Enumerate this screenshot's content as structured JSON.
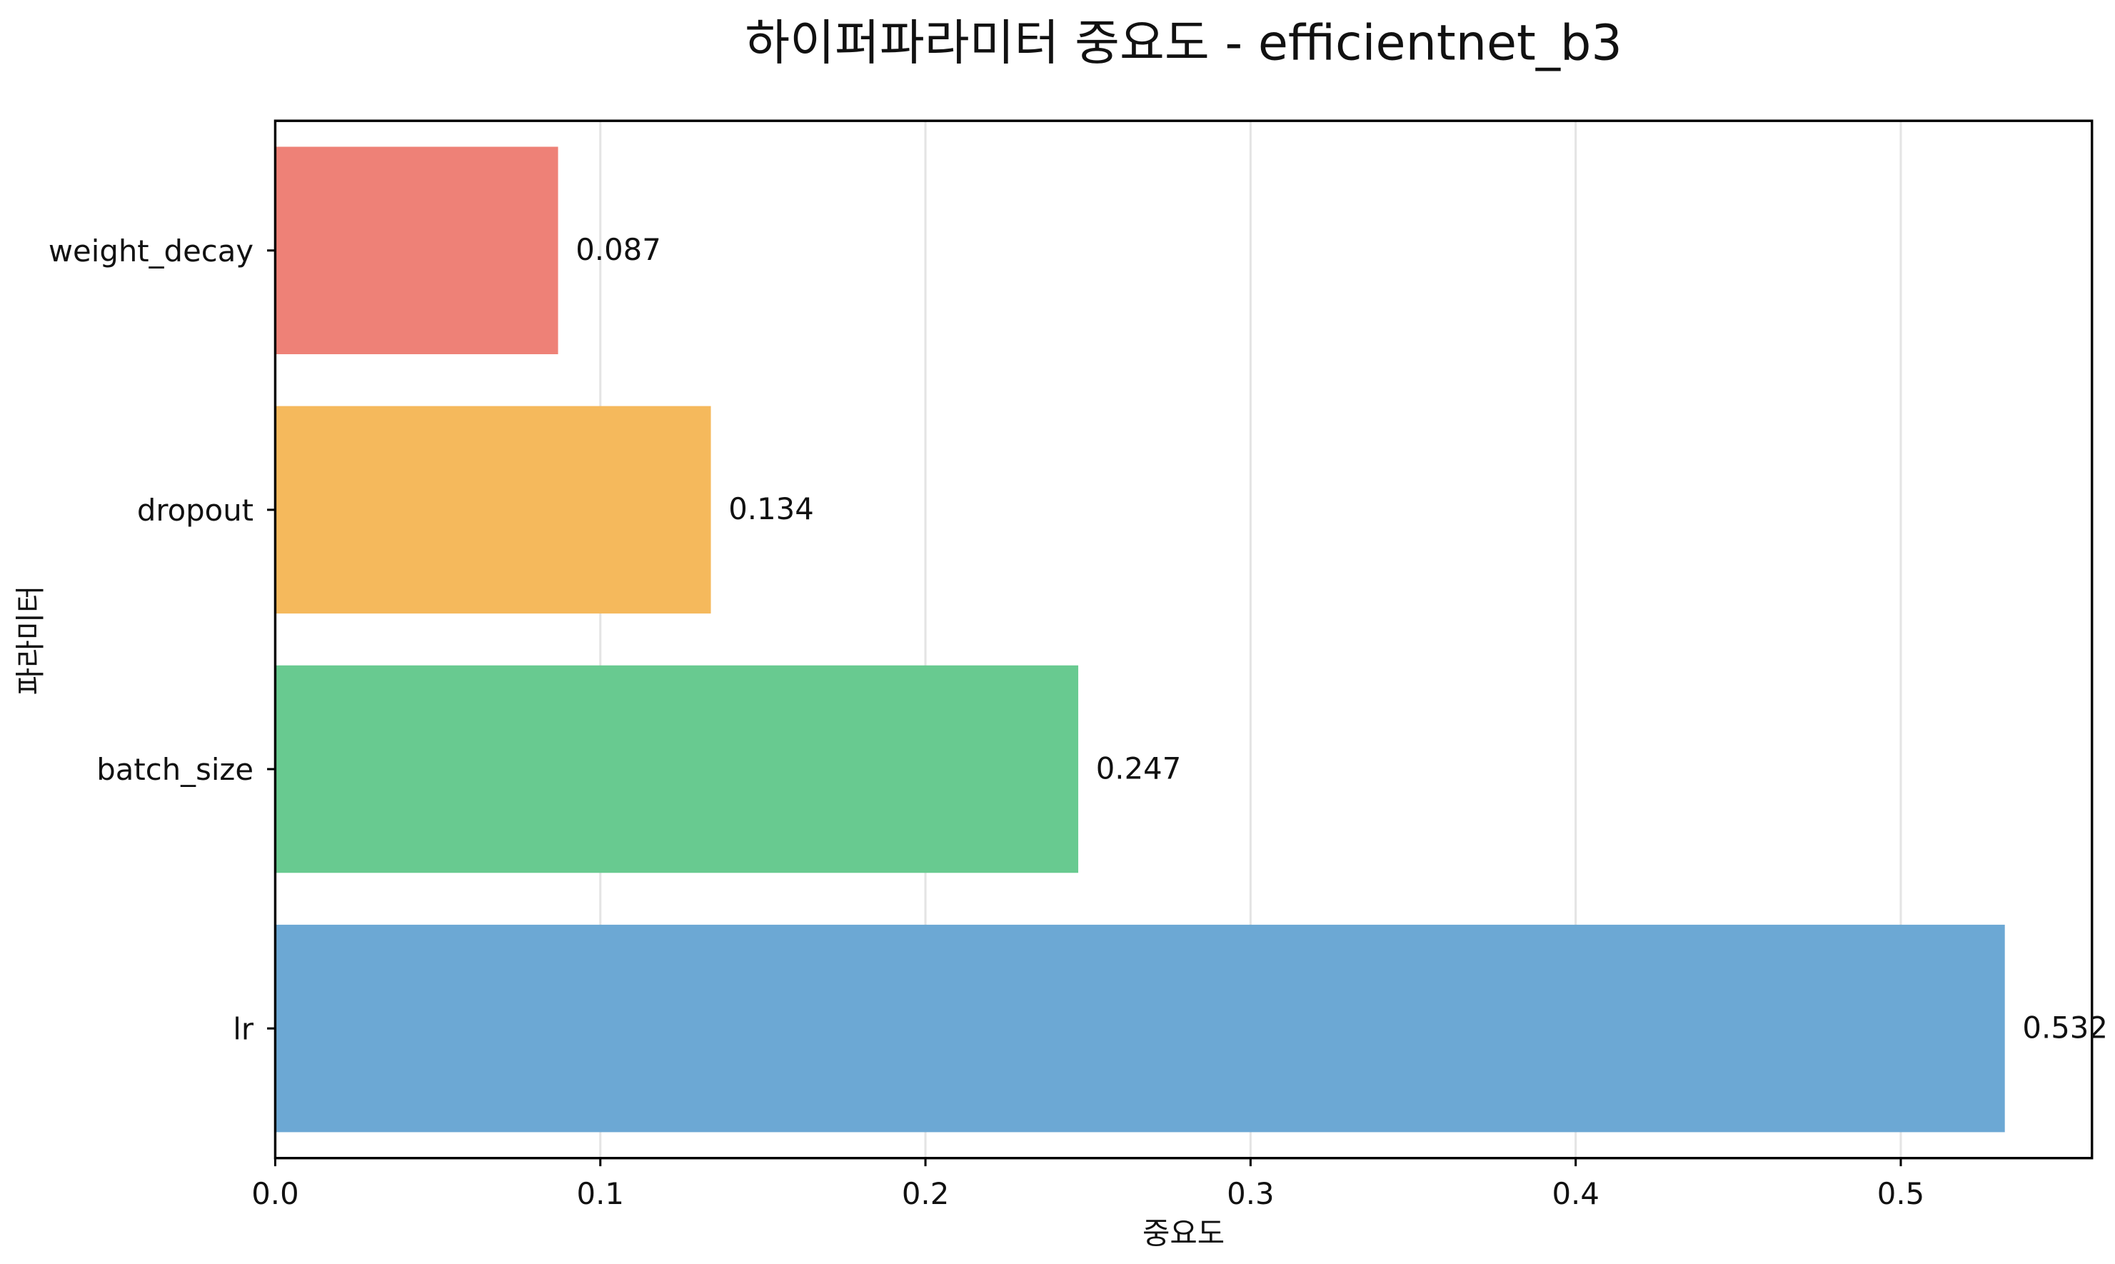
{
  "chart_data": {
    "type": "bar",
    "orientation": "horizontal",
    "title": "하이퍼파라미터 중요도 - efficientnet_b3",
    "xlabel": "중요도",
    "ylabel": "파라미터",
    "categories": [
      "lr",
      "batch_size",
      "dropout",
      "weight_decay"
    ],
    "values": [
      0.532,
      0.247,
      0.134,
      0.087
    ],
    "value_labels": [
      "0.532",
      "0.247",
      "0.134",
      "0.087"
    ],
    "colors": [
      "#6ca8d4",
      "#68ca90",
      "#f5b95c",
      "#ee8177"
    ],
    "xlim": [
      0,
      0.5588
    ],
    "xticks": [
      0.0,
      0.1,
      0.2,
      0.3,
      0.4,
      0.5
    ],
    "xtick_labels": [
      "0.0",
      "0.1",
      "0.2",
      "0.3",
      "0.4",
      "0.5"
    ],
    "grid": "x-axis vertical lines",
    "legend": "none"
  }
}
